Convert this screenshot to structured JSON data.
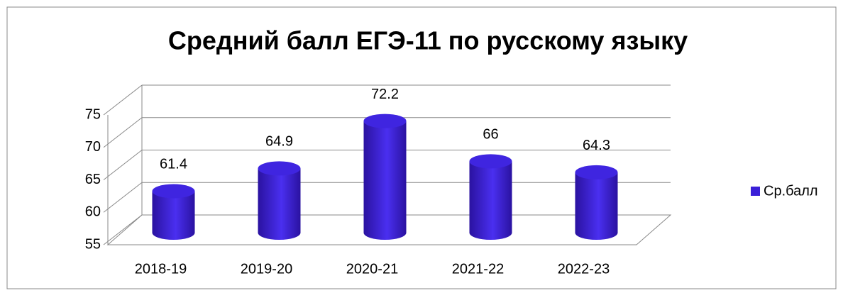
{
  "chart_data": {
    "type": "bar3d",
    "title": "Средний балл ЕГЭ-11 по русскому языку",
    "categories": [
      "2018-19",
      "2019-20",
      "2020-21",
      "2021-22",
      "2022-23"
    ],
    "series": [
      {
        "name": "Ср.балл",
        "color": "#3a1fd8",
        "values": [
          61.4,
          64.9,
          72.2,
          66,
          64.3
        ]
      }
    ],
    "ylim": [
      55,
      75
    ],
    "yticks": [
      55,
      60,
      65,
      70,
      75
    ],
    "grid": true,
    "legend": "right"
  }
}
